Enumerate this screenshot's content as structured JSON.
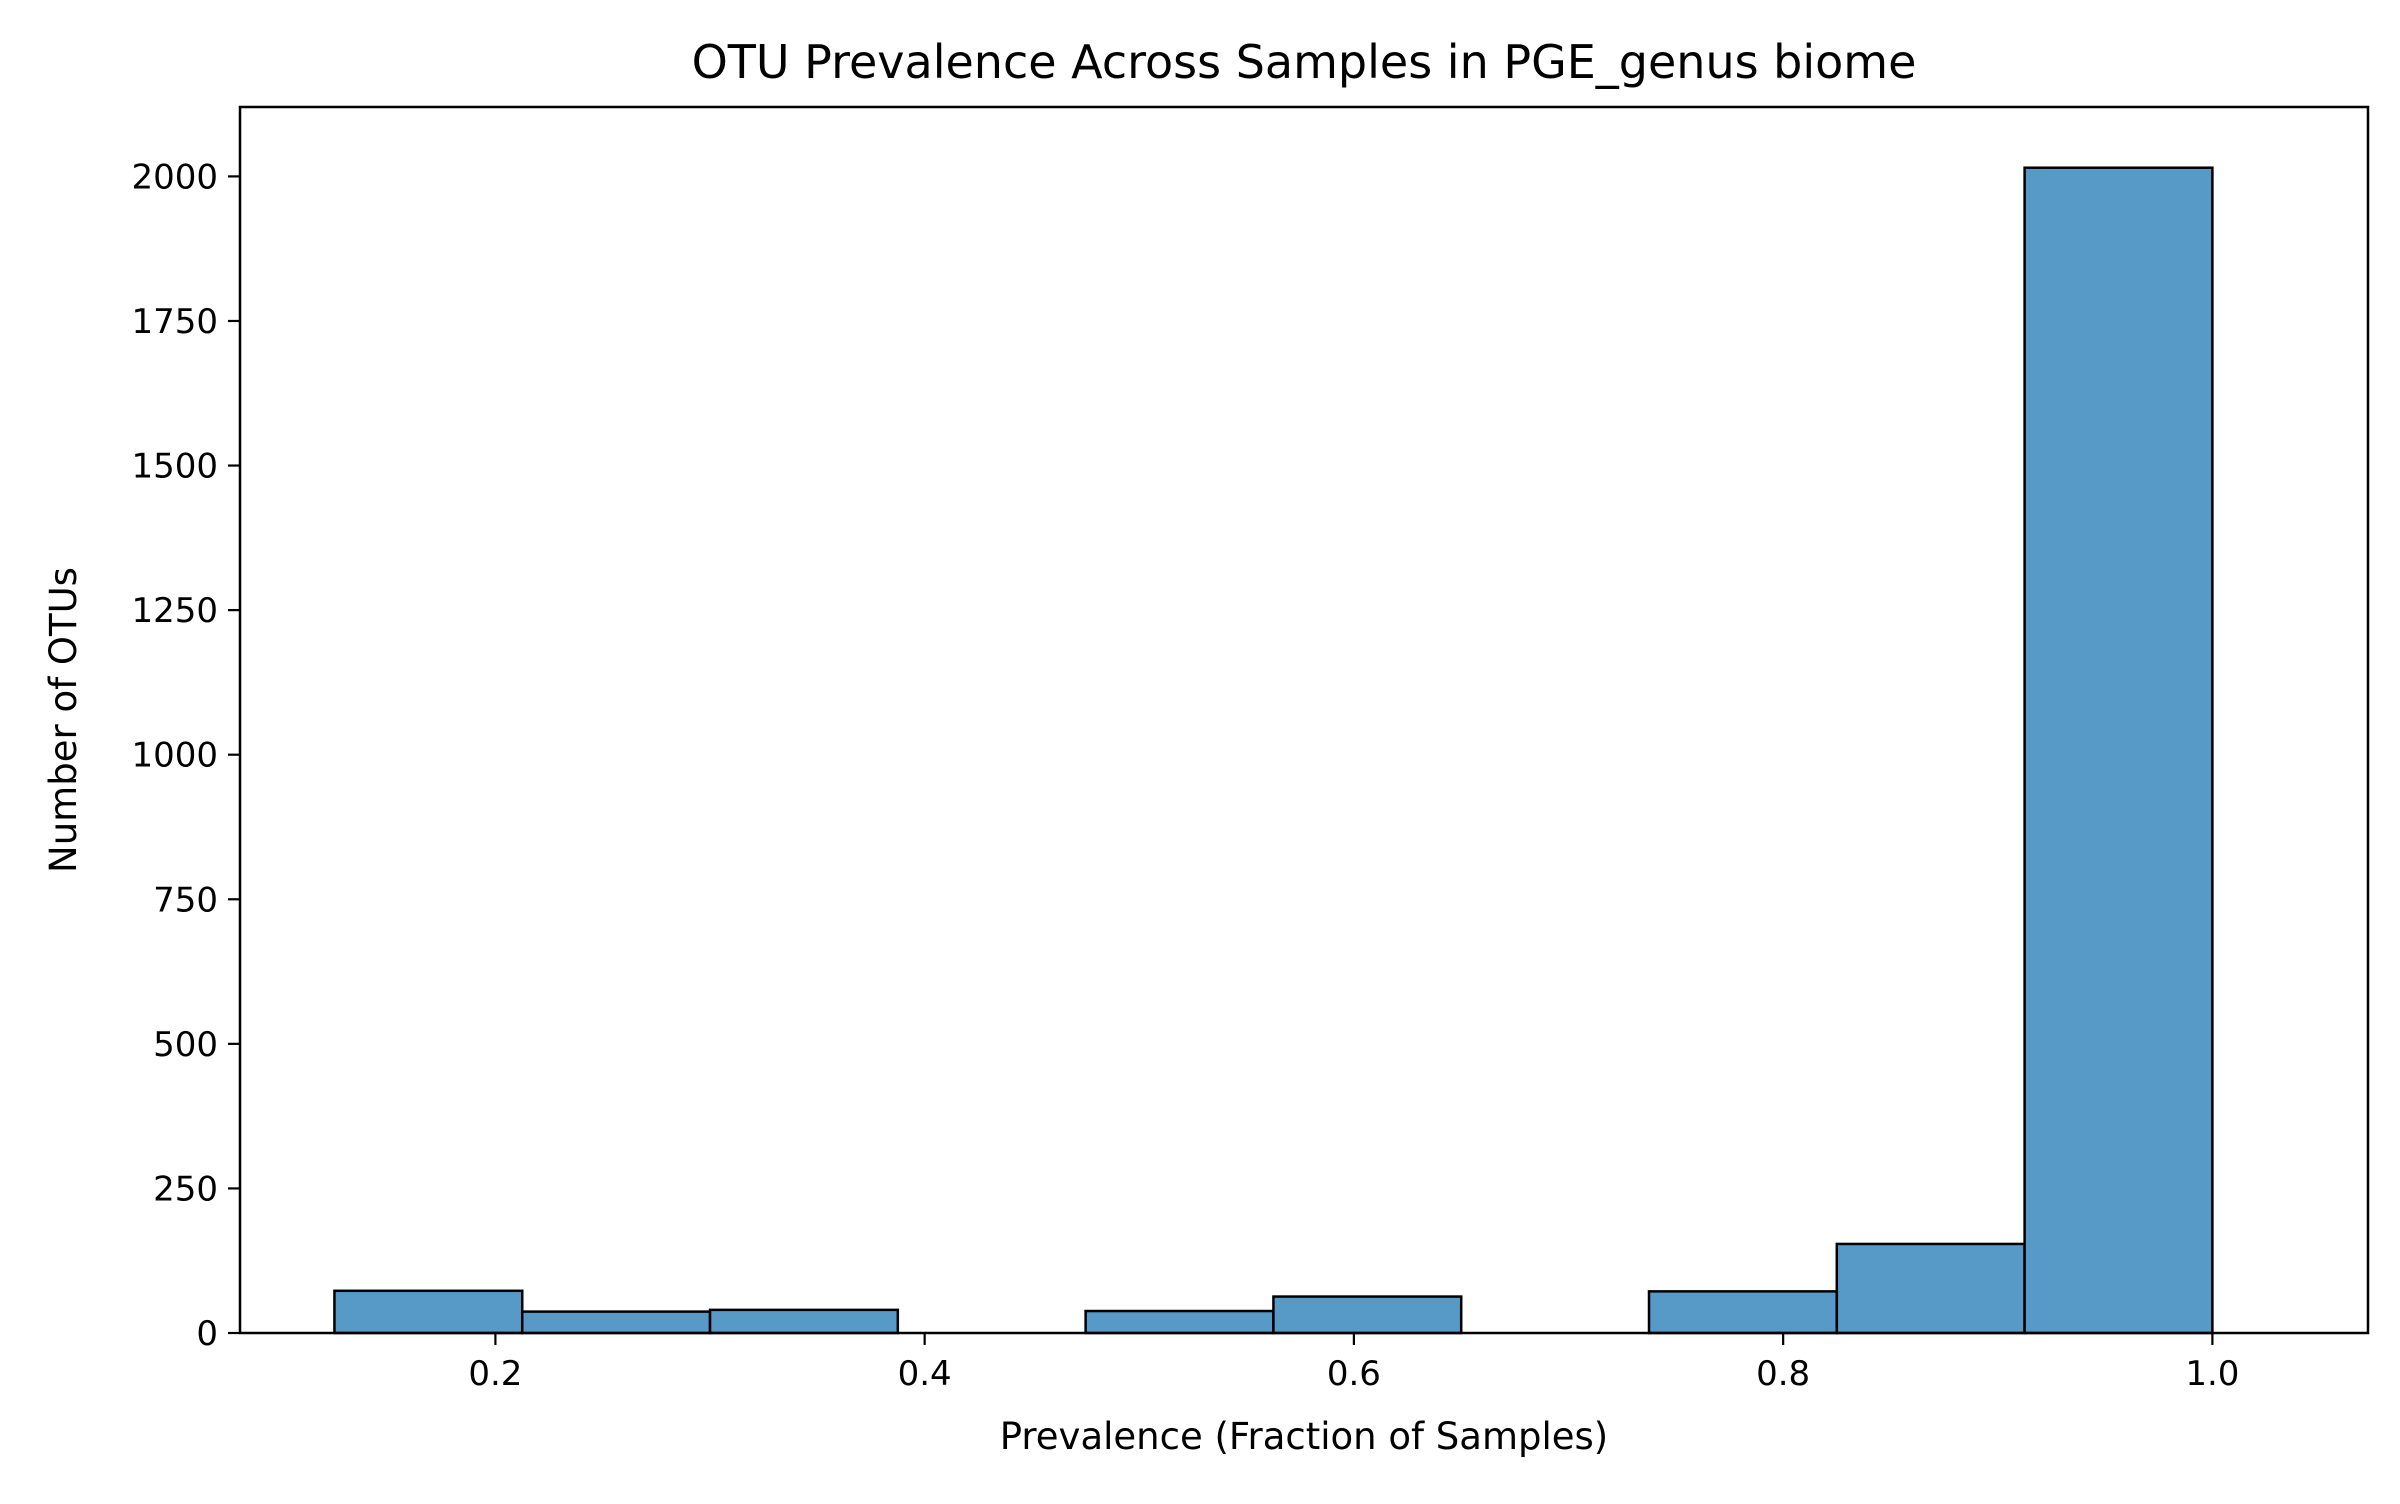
{
  "chart_data": {
    "type": "histogram",
    "title": "OTU Prevalence Across Samples in PGE_genus biome",
    "xlabel": "Prevalence (Fraction of Samples)",
    "ylabel": "Number of OTUs",
    "xlim": [
      0.081,
      1.0725
    ],
    "ylim": [
      0,
      2120
    ],
    "x_ticks": [
      0.2,
      0.4,
      0.6,
      0.8,
      1.0
    ],
    "x_tick_labels": [
      "0.2",
      "0.4",
      "0.6",
      "0.8",
      "1.0"
    ],
    "y_ticks": [
      0,
      250,
      500,
      750,
      1000,
      1250,
      1500,
      1750,
      2000
    ],
    "y_tick_labels": [
      "0",
      "250",
      "500",
      "750",
      "1000",
      "1250",
      "1500",
      "1750",
      "2000"
    ],
    "bin_edges": [
      0.125,
      0.2125,
      0.3,
      0.3875,
      0.475,
      0.5625,
      0.65,
      0.7375,
      0.825,
      0.9125,
      1.0
    ],
    "values": [
      73,
      37,
      40,
      0,
      38,
      63,
      0,
      72,
      154,
      2015
    ],
    "grid": false,
    "colors": {
      "bar_fill": "#5799c7",
      "bar_edge": "#000000",
      "axes": "#000000",
      "background": "#ffffff"
    }
  }
}
